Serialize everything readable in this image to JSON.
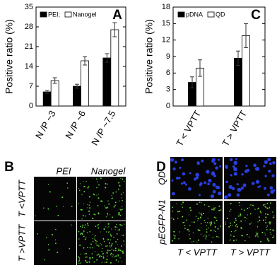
{
  "chart_data": [
    {
      "type": "bar",
      "label": "A",
      "ylabel": "Positive ratio (%)",
      "categories": [
        "N /P ~3",
        "N /P ~6",
        "N /P ~7.5"
      ],
      "series": [
        {
          "name": "PEI;",
          "color": "#000000",
          "values": [
            5,
            7,
            17
          ],
          "errors": [
            0.5,
            0.7,
            1.5
          ]
        },
        {
          "name": "Nanogel",
          "color": "#ffffff",
          "values": [
            9,
            16,
            27
          ],
          "errors": [
            1,
            1.5,
            2.5
          ]
        }
      ],
      "ylim": [
        0,
        35
      ],
      "yticks": [
        0,
        7,
        14,
        21,
        28,
        35
      ]
    },
    {
      "type": "bar",
      "label": "C",
      "ylabel": "Positive ratio (%)",
      "categories": [
        "T < VPTT",
        "T > VPTT"
      ],
      "series": [
        {
          "name": "pDNA",
          "color": "#000000",
          "values": [
            4.3,
            8.7
          ],
          "errors": [
            1.0,
            1.3
          ]
        },
        {
          "name": "QD",
          "color": "#ffffff",
          "values": [
            6.9,
            12.8
          ],
          "errors": [
            1.5,
            2.2
          ]
        }
      ],
      "ylim": [
        0,
        18
      ],
      "yticks": [
        0,
        3,
        6,
        9,
        12,
        15,
        18
      ]
    }
  ],
  "panels": [
    {
      "label": "B",
      "columns": [
        "PEI",
        "Nanogel"
      ],
      "rows": [
        "T <VPTT",
        "T >VPTT"
      ]
    },
    {
      "label": "D",
      "columns": [
        "T < VPTT",
        "T > VPTT"
      ],
      "rows": [
        "QD",
        "pEGFP-N1"
      ]
    }
  ]
}
